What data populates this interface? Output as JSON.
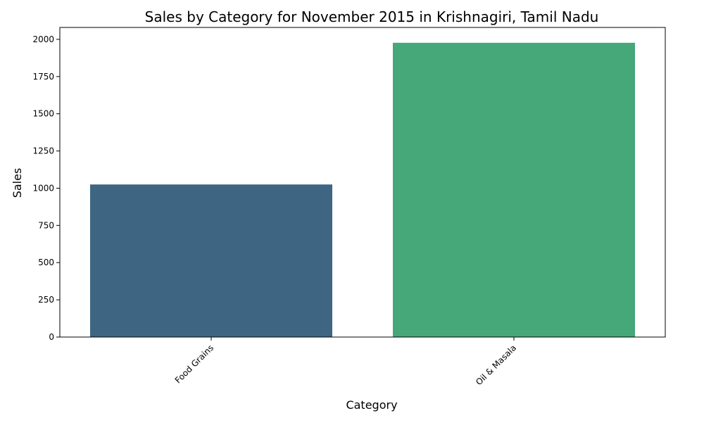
{
  "chart_data": {
    "type": "bar",
    "title": "Sales by Category for November 2015 in Krishnagiri, Tamil Nadu",
    "xlabel": "Category",
    "ylabel": "Sales",
    "categories": [
      "Food Grains",
      "Oil & Masala"
    ],
    "values": [
      1025,
      1977
    ],
    "ylim": [
      0,
      2080
    ],
    "yticks": [
      0,
      250,
      500,
      750,
      1000,
      1250,
      1500,
      1750,
      2000
    ],
    "colors": [
      "#3e6683",
      "#46a878"
    ],
    "grid": false,
    "xtick_rotation": 45
  }
}
